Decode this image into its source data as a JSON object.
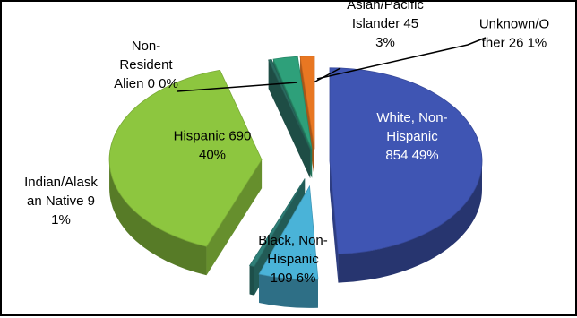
{
  "chart_data": {
    "type": "pie",
    "style": "3d-exploded",
    "title": "",
    "legend": "none",
    "slices": [
      {
        "category": "White, Non-Hispanic",
        "value": 854,
        "percent": "49%",
        "label_lines": [
          "White, Non-",
          "Hispanic",
          "854 49%"
        ],
        "color": "#3f55b3",
        "label_color": "#ffffff"
      },
      {
        "category": "Black, Non-Hispanic",
        "value": 109,
        "percent": "6%",
        "label_lines": [
          "Black, Non-",
          "Hispanic",
          "109 6%"
        ],
        "color": "#4ab3d8",
        "label_color": "#000000"
      },
      {
        "category": "Indian/Alaskan Native",
        "value": 9,
        "percent": "1%",
        "label_lines": [
          "Indian/Alask",
          "an Native   9",
          "1%"
        ],
        "color": "#2f7f78",
        "label_color": "#000000"
      },
      {
        "category": "Hispanic",
        "value": 690,
        "percent": "40%",
        "label_lines": [
          "Hispanic 690",
          "40%"
        ],
        "color": "#8dc63f",
        "label_color": "#000000"
      },
      {
        "category": "Non-Resident Alien",
        "value": 0,
        "percent": "0%",
        "label_lines": [
          "Non-",
          "Resident",
          "Alien   0 0%"
        ],
        "color": "#2a6b60",
        "label_color": "#000000"
      },
      {
        "category": "Asian/Pacific Islander",
        "value": 45,
        "percent": "3%",
        "label_lines": [
          "Asian/Pacific",
          "Islander   45",
          "3%"
        ],
        "color": "#2ea07a",
        "label_color": "#000000"
      },
      {
        "category": "Unknown/Other",
        "value": 26,
        "percent": "1%",
        "label_lines": [
          "Unknown/O",
          "ther 26 1%"
        ],
        "color": "#e87722",
        "label_color": "#000000"
      }
    ]
  }
}
